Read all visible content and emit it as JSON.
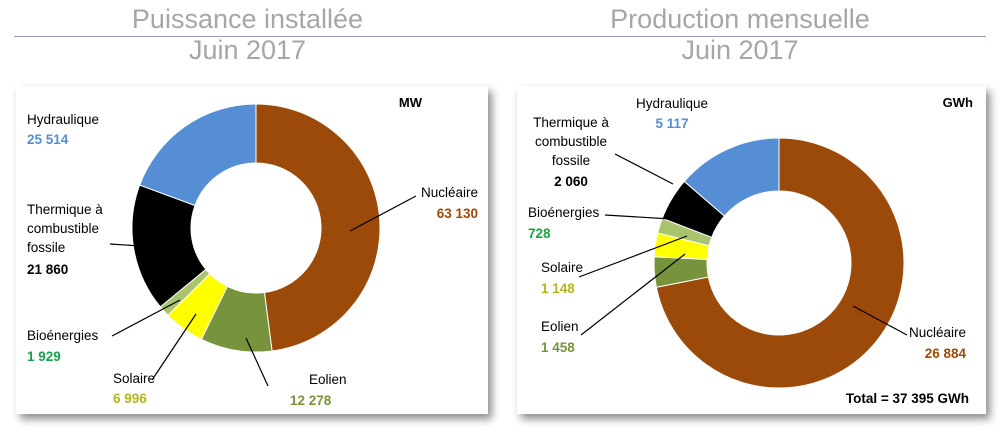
{
  "titles": {
    "left": [
      "Puissance installée",
      "Juin 2017"
    ],
    "right": [
      "Production mensuelle",
      "Juin 2017"
    ]
  },
  "colors": {
    "nucleaire": "#9c4a09",
    "eolien": "#77933c",
    "solaire": "#ffff00",
    "bioenergies": "#a9c46d",
    "thermique": "#000000",
    "hydraulique": "#558ed5",
    "value_nucleaire": "#9c4a09",
    "value_eolien": "#77933c",
    "value_solaire": "#b7b41e",
    "value_bioenergies": "#1aa24a",
    "value_thermique": "#000000",
    "value_hydraulique": "#558ed5"
  },
  "chart_data": [
    {
      "type": "pie",
      "variant": "donut",
      "title": "Puissance installée Juin 2017",
      "unit": "MW",
      "slices": [
        {
          "key": "nucleaire",
          "label": "Nucléaire",
          "value": 63130,
          "value_label": "63 130"
        },
        {
          "key": "eolien",
          "label": "Eolien",
          "value": 12278,
          "value_label": "12 278"
        },
        {
          "key": "solaire",
          "label": "Solaire",
          "value": 6996,
          "value_label": "6 996"
        },
        {
          "key": "bioenergies",
          "label": "Bioénergies",
          "value": 1929,
          "value_label": "1 929"
        },
        {
          "key": "thermique",
          "label": "Thermique à combustible fossile",
          "value": 21860,
          "value_label": "21 860"
        },
        {
          "key": "hydraulique",
          "label": "Hydraulique",
          "value": 25514,
          "value_label": "25 514"
        }
      ]
    },
    {
      "type": "pie",
      "variant": "donut",
      "title": "Production mensuelle Juin 2017",
      "unit": "GWh",
      "total_label": "Total = 37 395 GWh",
      "slices": [
        {
          "key": "nucleaire",
          "label": "Nucléaire",
          "value": 26884,
          "value_label": "26 884"
        },
        {
          "key": "eolien",
          "label": "Eolien",
          "value": 1458,
          "value_label": "1 458"
        },
        {
          "key": "solaire",
          "label": "Solaire",
          "value": 1148,
          "value_label": "1 148"
        },
        {
          "key": "bioenergies",
          "label": "Bioénergies",
          "value": 728,
          "value_label": "728"
        },
        {
          "key": "thermique",
          "label": "Thermique à combustible fossile",
          "value": 2060,
          "value_label": "2 060"
        },
        {
          "key": "hydraulique",
          "label": "Hydraulique",
          "value": 5117,
          "value_label": "5 117"
        }
      ]
    }
  ]
}
